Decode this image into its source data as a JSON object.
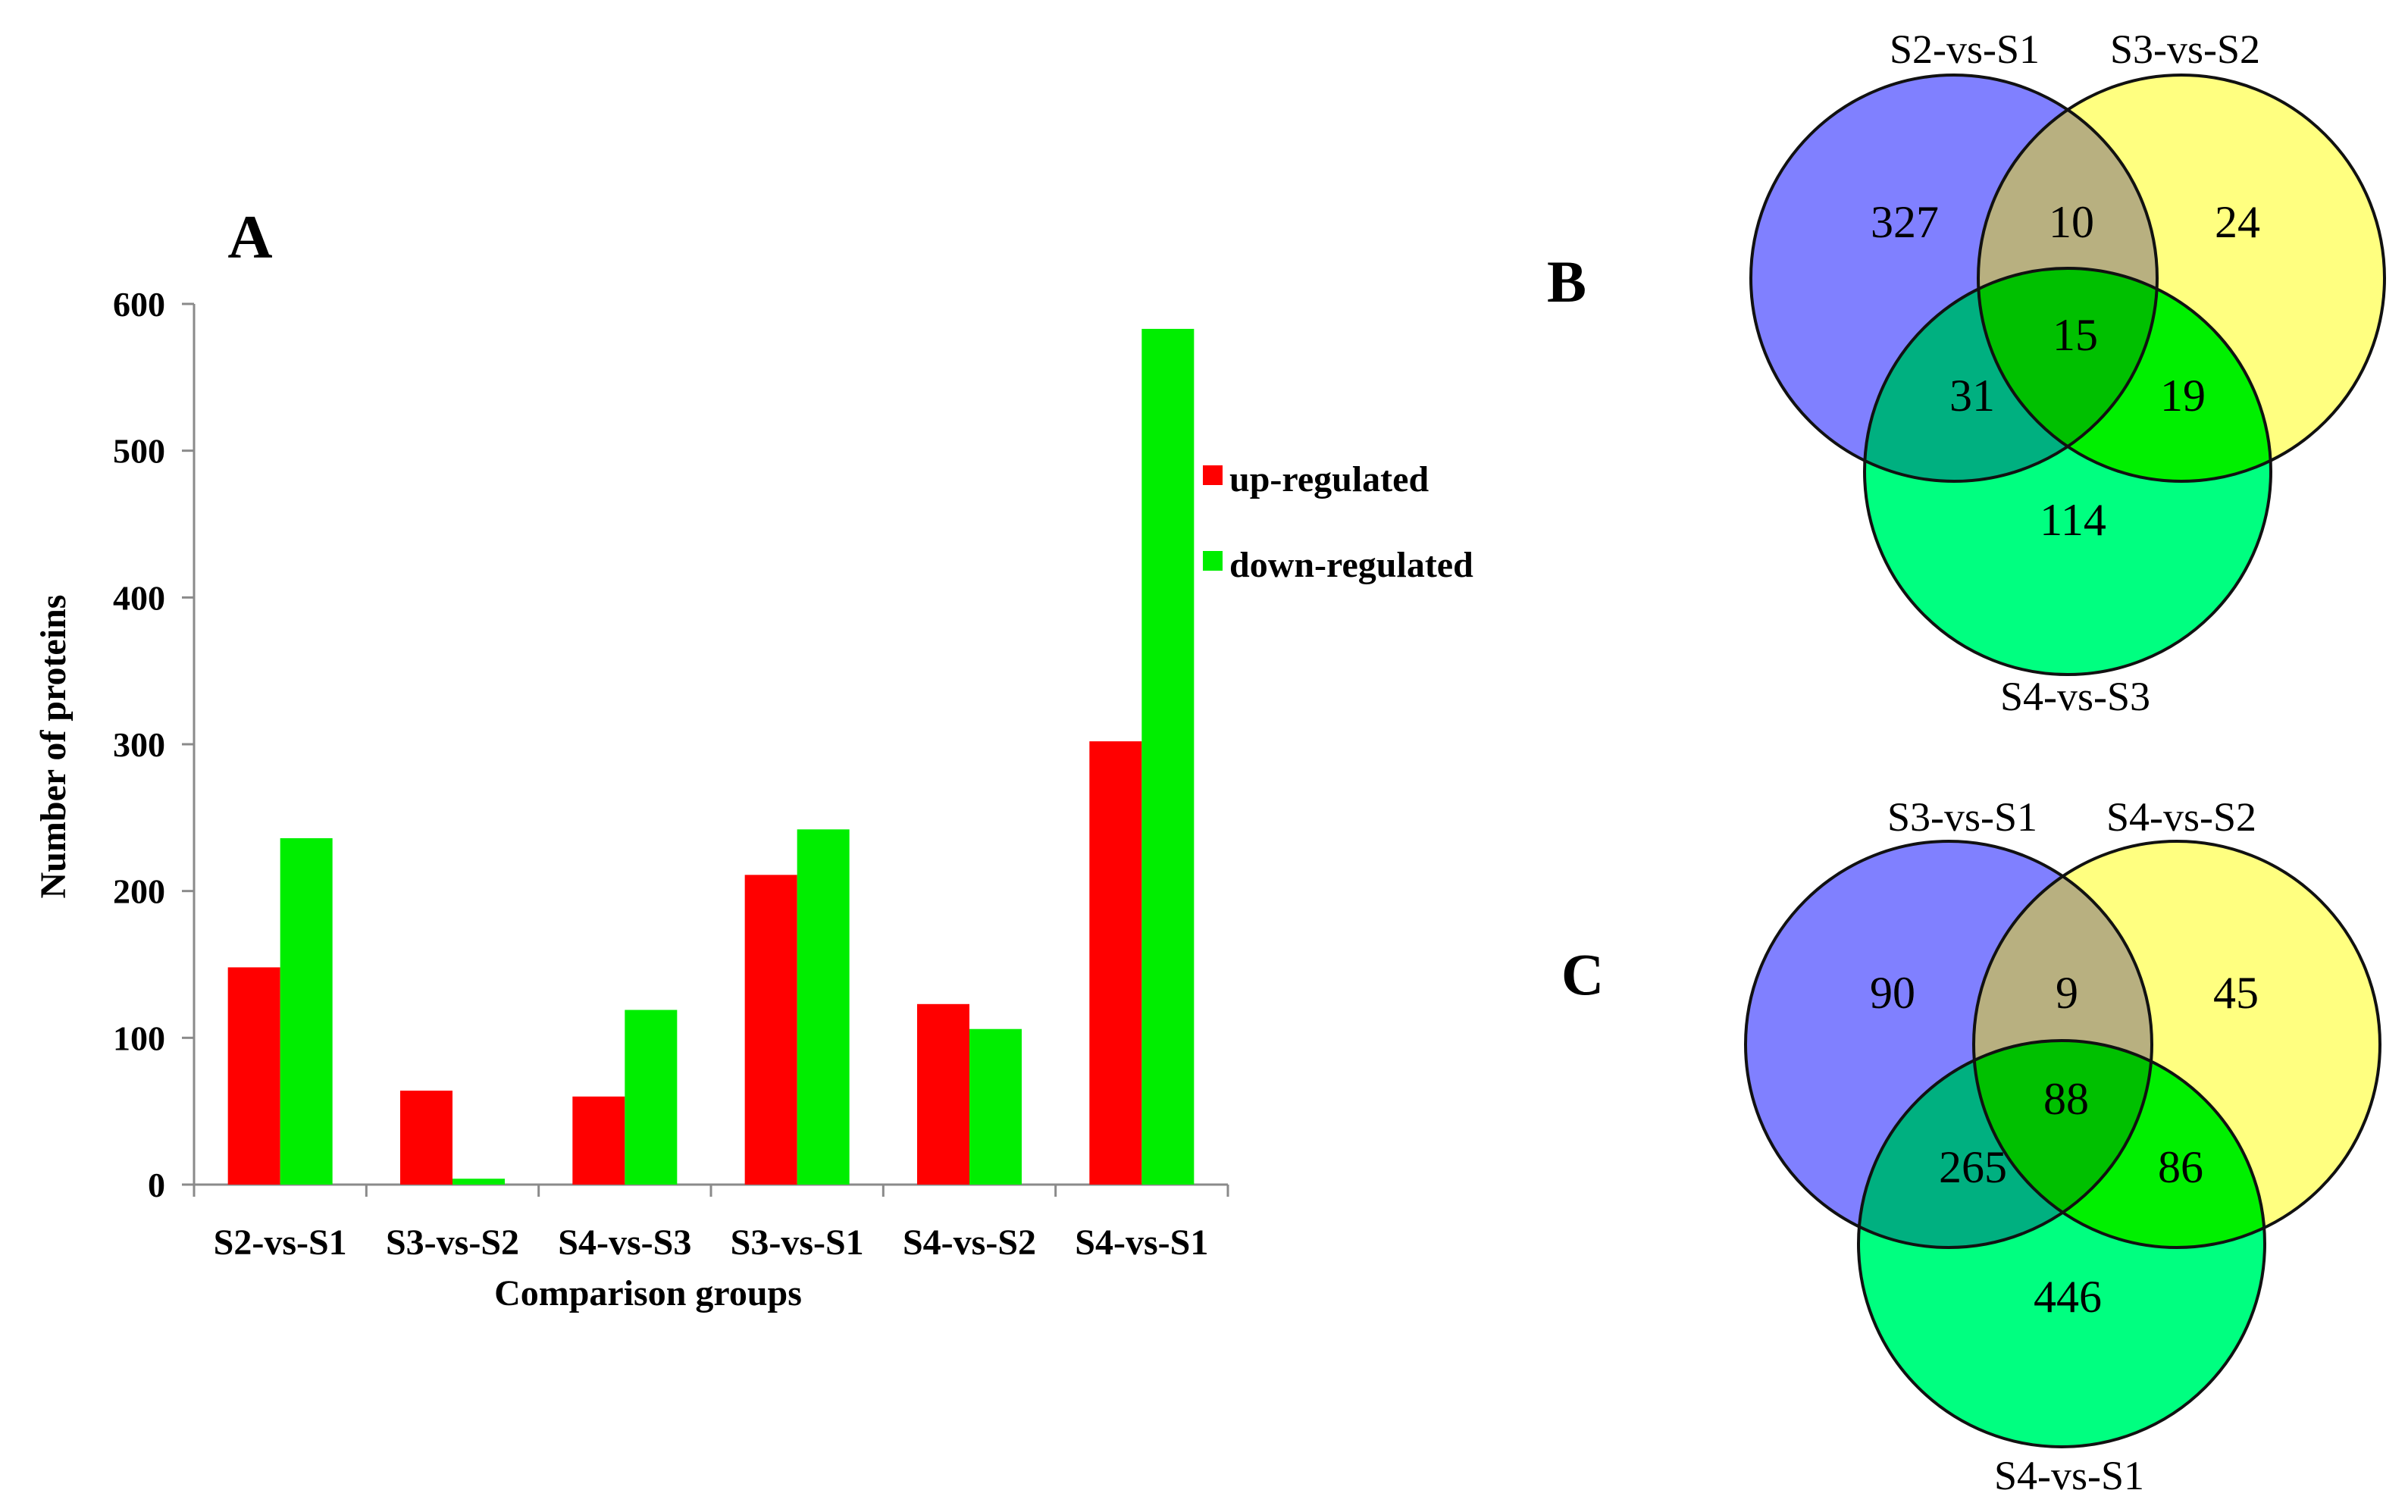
{
  "chart_data": [
    {
      "panel": "A",
      "type": "bar",
      "title": "A",
      "xlabel": "Comparison groups",
      "ylabel": "Number of proteins",
      "ylim": [
        0,
        600
      ],
      "yticks": [
        0,
        100,
        200,
        300,
        400,
        500,
        600
      ],
      "grid": false,
      "legend": "right",
      "categories": [
        "S2-vs-S1",
        "S3-vs-S2",
        "S4-vs-S3",
        "S3-vs-S1",
        "S4-vs-S2",
        "S4-vs-S1"
      ],
      "series": [
        {
          "name": "up-regulated",
          "color": "#ff0000",
          "values": [
            148,
            64,
            60,
            211,
            123,
            302
          ]
        },
        {
          "name": "down-regulated",
          "color": "#00ee00",
          "values": [
            236,
            4,
            119,
            242,
            106,
            583
          ]
        }
      ]
    },
    {
      "panel": "B",
      "type": "venn",
      "title": "B",
      "sets": [
        {
          "name": "S2-vs-S1",
          "color": "#8080ff"
        },
        {
          "name": "S3-vs-S2",
          "color": "#ffff80"
        },
        {
          "name": "S4-vs-S3",
          "color": "#00ff80"
        }
      ],
      "regions": {
        "a": "327",
        "b": "24",
        "c": "114",
        "ab": "10",
        "ac": "31",
        "bc": "19",
        "abc": "15"
      },
      "region_colors": {
        "ab": "#b8b080",
        "ac": "#00b080",
        "bc": "#00f000",
        "abc": "#00c000"
      }
    },
    {
      "panel": "C",
      "type": "venn",
      "title": "C",
      "sets": [
        {
          "name": "S3-vs-S1",
          "color": "#8080ff"
        },
        {
          "name": "S4-vs-S2",
          "color": "#ffff80"
        },
        {
          "name": "S4-vs-S1",
          "color": "#00ff80"
        }
      ],
      "regions": {
        "a": "90",
        "b": "45",
        "c": "446",
        "ab": "9",
        "ac": "265",
        "bc": "86",
        "abc": "88"
      },
      "region_colors": {
        "ab": "#b8b080",
        "ac": "#00b080",
        "bc": "#00f000",
        "abc": "#00c000"
      }
    }
  ]
}
